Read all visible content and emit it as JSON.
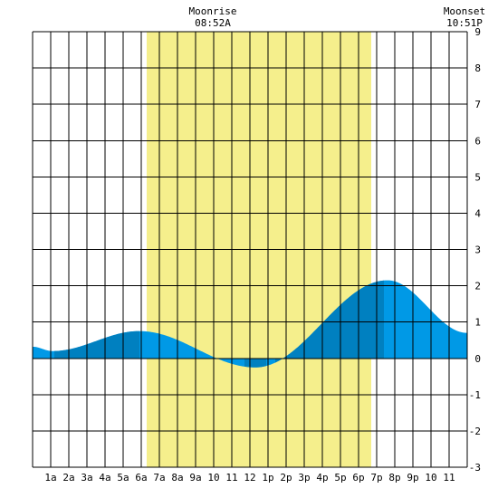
{
  "chart_data": {
    "type": "area",
    "title": "",
    "xlabel": "",
    "ylabel": "",
    "x_range": [
      0,
      24
    ],
    "ylim": [
      -3,
      9
    ],
    "y_ticks": [
      "9",
      "8",
      "7",
      "6",
      "5",
      "4",
      "3",
      "2",
      "1",
      "0",
      "-1",
      "-2",
      "-3"
    ],
    "x_ticks": [
      "1a",
      "2a",
      "3a",
      "4a",
      "5a",
      "6a",
      "7a",
      "8a",
      "9a",
      "10",
      "11",
      "12",
      "1p",
      "2p",
      "3p",
      "4p",
      "5p",
      "6p",
      "7p",
      "8p",
      "9p",
      "10",
      "11"
    ],
    "grid": true,
    "daylight_band": {
      "start": 6.3,
      "end": 18.7,
      "color": "#f5ef8c"
    },
    "moon": {
      "moonrise_label": "Moonrise",
      "moonrise_time": "08:52A",
      "moonset_label": "Moonset",
      "moonset_time": "10:51P"
    },
    "tide_extremes": [
      {
        "x": 1.1,
        "y": 0.2
      },
      {
        "x": 5.9,
        "y": 0.75
      },
      {
        "x": 12.3,
        "y": -0.25
      },
      {
        "x": 19.6,
        "y": 2.15
      },
      {
        "x": 24.0,
        "y": 0.7
      }
    ],
    "tide_start": {
      "x": 0.0,
      "y": 0.32
    },
    "shade_bands": [
      {
        "start": 1.2,
        "end": 5.9
      },
      {
        "start": 11.7,
        "end": 12.9
      },
      {
        "start": 13.4,
        "end": 19.4
      }
    ],
    "colors": {
      "tide": "#0099e6",
      "tide_dark": "#0080c0",
      "grid": "#000000",
      "background": "#ffffff"
    }
  }
}
